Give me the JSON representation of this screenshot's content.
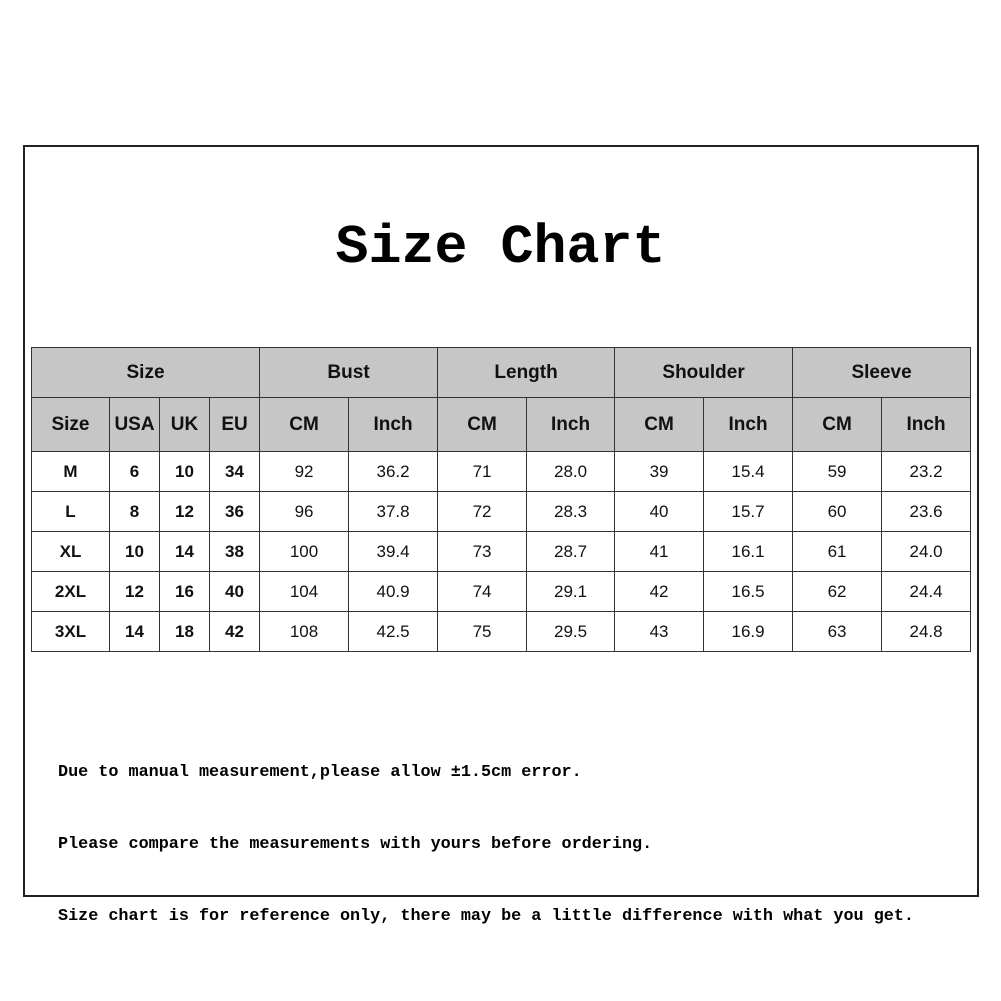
{
  "title": "Size Chart",
  "table": {
    "group_headers": [
      {
        "label": "Size",
        "span": 4
      },
      {
        "label": "Bust",
        "span": 2
      },
      {
        "label": "Length",
        "span": 2
      },
      {
        "label": "Shoulder",
        "span": 2
      },
      {
        "label": "Sleeve",
        "span": 2
      }
    ],
    "sub_headers": [
      "Size",
      "USA",
      "UK",
      "EU",
      "CM",
      "Inch",
      "CM",
      "Inch",
      "CM",
      "Inch",
      "CM",
      "Inch"
    ],
    "rows": [
      [
        "M",
        "6",
        "10",
        "34",
        "92",
        "36.2",
        "71",
        "28.0",
        "39",
        "15.4",
        "59",
        "23.2"
      ],
      [
        "L",
        "8",
        "12",
        "36",
        "96",
        "37.8",
        "72",
        "28.3",
        "40",
        "15.7",
        "60",
        "23.6"
      ],
      [
        "XL",
        "10",
        "14",
        "38",
        "100",
        "39.4",
        "73",
        "28.7",
        "41",
        "16.1",
        "61",
        "24.0"
      ],
      [
        "2XL",
        "12",
        "16",
        "40",
        "104",
        "40.9",
        "74",
        "29.1",
        "42",
        "16.5",
        "62",
        "24.4"
      ],
      [
        "3XL",
        "14",
        "18",
        "42",
        "108",
        "42.5",
        "75",
        "29.5",
        "43",
        "16.9",
        "63",
        "24.8"
      ]
    ]
  },
  "notes": [
    "Due to manual measurement,please allow ±1.5cm error.",
    "Please compare the measurements with yours before ordering.",
    "Size chart is for reference only, there may be a little difference with what you get."
  ],
  "colors": {
    "header_bg": "#c6c6c6",
    "border": "#333333"
  }
}
